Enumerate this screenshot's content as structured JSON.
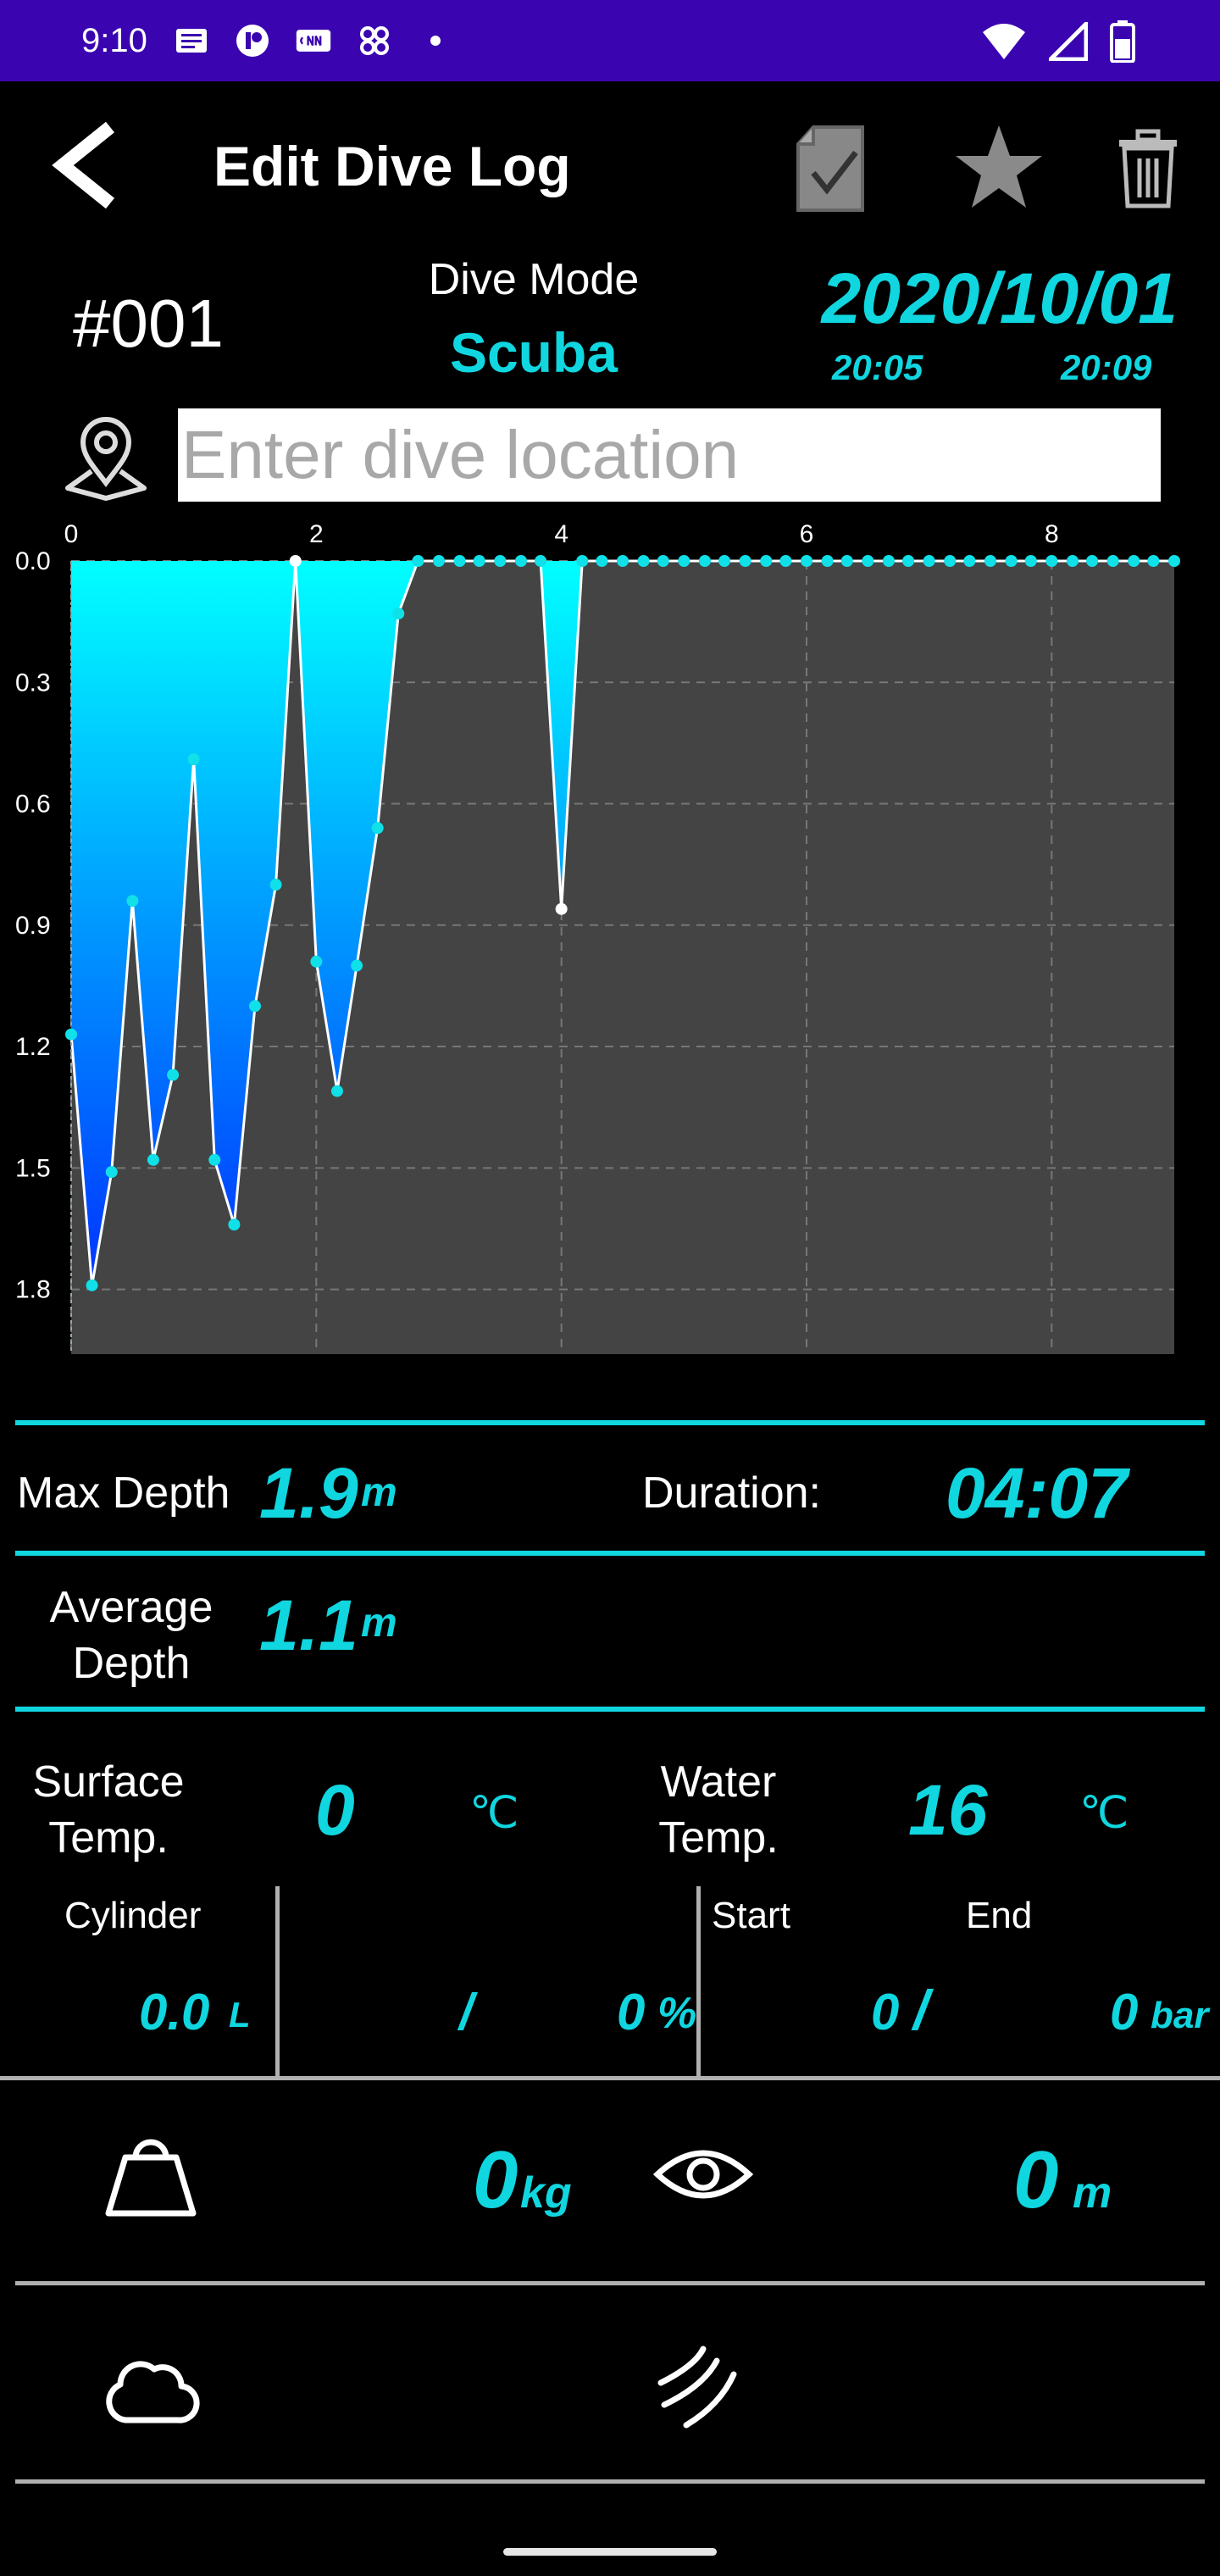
{
  "status_bar": {
    "time": "9:10",
    "icons": [
      "news-icon",
      "circle-app-icon",
      "cnn-icon",
      "pinwheel-icon",
      "dot-icon",
      "wifi-icon",
      "signal-icon",
      "battery-icon"
    ],
    "background": "#3a05b0"
  },
  "app_bar": {
    "title": "Edit Dive Log",
    "actions": [
      "save-check-icon",
      "star-icon",
      "trash-icon"
    ]
  },
  "dive": {
    "number": "#001",
    "mode_label": "Dive Mode",
    "mode_value": "Scuba",
    "date": "2020/10/01",
    "start_time": "20:05",
    "end_time": "20:09",
    "location_placeholder": "Enter dive location",
    "location_value": ""
  },
  "chart_data": {
    "type": "area",
    "x_ticks": [
      "0",
      "2",
      "4",
      "6",
      "8"
    ],
    "y_ticks": [
      "0.0",
      "0.3",
      "0.6",
      "0.9",
      "1.2",
      "1.5",
      "1.8"
    ],
    "xlim": [
      0,
      9
    ],
    "ylim": [
      0,
      1.96
    ],
    "y_inverted": true,
    "grid": true,
    "series": [
      {
        "x": [
          0,
          0.17,
          0.33,
          0.5,
          0.67,
          0.83,
          1.0,
          1.17,
          1.33,
          1.5,
          1.67,
          1.83,
          2.0,
          2.17,
          2.33,
          2.5,
          2.67,
          2.83,
          3.0,
          3.17,
          3.33,
          3.5,
          3.67,
          3.83,
          4.0,
          4.17,
          4.33,
          4.5,
          4.67,
          4.83,
          5.0,
          5.17,
          5.33,
          5.5,
          5.67,
          5.83,
          6.0,
          6.17,
          6.33,
          6.5,
          6.67,
          6.83,
          7.0,
          7.17,
          7.33,
          7.5,
          7.67,
          7.83,
          8.0,
          8.17,
          8.33,
          8.5,
          8.67,
          8.83,
          9.0
        ],
        "y": [
          1.17,
          1.79,
          1.51,
          0.84,
          1.48,
          1.27,
          0.49,
          1.48,
          1.64,
          1.1,
          0.8,
          0.0,
          0.99,
          1.31,
          1.0,
          0.66,
          0.13,
          0.0,
          0.0,
          0.0,
          0.0,
          0.0,
          0.0,
          0.0,
          0.86,
          0.0,
          0.0,
          0.0,
          0.0,
          0.0,
          0.0,
          0.0,
          0.0,
          0.0,
          0.0,
          0.0,
          0.0,
          0.0,
          0.0,
          0.0,
          0.0,
          0.0,
          0.0,
          0.0,
          0.0,
          0.0,
          0.0,
          0.0,
          0.0,
          0.0,
          0.0,
          0.0,
          0.0,
          0.0,
          0.0
        ]
      }
    ],
    "colors": {
      "fill_top": "#00ffff",
      "fill_bottom": "#0033ff",
      "line": "#ffffff",
      "point": "#10e0e8",
      "plot_bg": "#444444",
      "grid": "#777777"
    }
  },
  "stats": {
    "max_depth_label": "Max Depth",
    "max_depth_value": "1.9",
    "max_depth_unit": "m",
    "duration_label": "Duration:",
    "duration_value": "04:07",
    "avg_depth_label_1": "Average",
    "avg_depth_label_2": "Depth",
    "avg_depth_value": "1.1",
    "avg_depth_unit": "m",
    "surface_temp_label_1": "Surface",
    "surface_temp_label_2": "Temp.",
    "surface_temp_value": "0",
    "surface_temp_unit": "℃",
    "water_temp_label_1": "Water",
    "water_temp_label_2": "Temp.",
    "water_temp_value": "16",
    "water_temp_unit": "℃"
  },
  "cylinder": {
    "label": "Cylinder",
    "volume_value": "0.0",
    "volume_unit": "L",
    "mix_sep": "/",
    "mix_value": "0",
    "mix_unit": "%",
    "start_label": "Start",
    "end_label": "End",
    "start_value": "0",
    "pressure_sep": "/",
    "end_value": "0",
    "pressure_unit": "bar"
  },
  "extras": {
    "weight_value": "0",
    "weight_unit": "kg",
    "visibility_value": "0",
    "visibility_unit": "m"
  },
  "accent_color": "#10d6e0"
}
